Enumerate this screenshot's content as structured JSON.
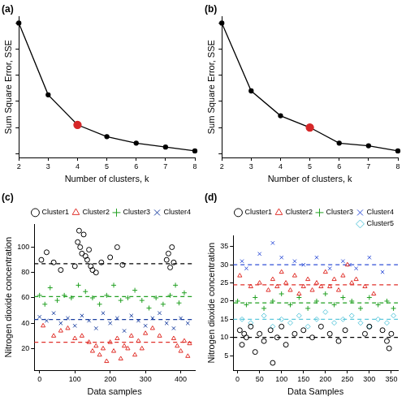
{
  "chart_data": [
    {
      "type": "line",
      "title": "(a)",
      "x_label": "Number of clusters, k",
      "y_label": "Sum Square Error, SSE",
      "x": [
        2,
        3,
        4,
        5,
        6,
        7,
        8
      ],
      "values": [
        100,
        45,
        22,
        13,
        8,
        5,
        2
      ],
      "color": "#000000",
      "colors": [
        "#000000",
        "#000000",
        "#d62728",
        "#000000",
        "#000000",
        "#000000",
        "#000000"
      ],
      "xlim": [
        2,
        8
      ],
      "xticks": [
        2,
        3,
        4,
        5,
        6,
        7,
        8
      ],
      "ylim": [
        -3,
        105
      ],
      "yticks": [
        0,
        20,
        40,
        60,
        80,
        100
      ],
      "tick_labels": "x",
      "grid": false,
      "marker": "circle"
    },
    {
      "type": "line",
      "title": "(b)",
      "x_label": "Number of clusters, k",
      "y_label": "Sum Square Error, SSE",
      "x": [
        2,
        3,
        4,
        5,
        6,
        7,
        8
      ],
      "values": [
        100,
        48,
        29,
        20,
        8,
        6,
        2
      ],
      "color": "#000000",
      "colors": [
        "#000000",
        "#000000",
        "#000000",
        "#d62728",
        "#000000",
        "#000000",
        "#000000"
      ],
      "xlim": [
        2,
        8
      ],
      "xticks": [
        2,
        3,
        4,
        5,
        6,
        7,
        8
      ],
      "ylim": [
        -3,
        105
      ],
      "yticks": [
        0,
        20,
        40,
        60,
        80,
        100
      ],
      "tick_labels": "x",
      "grid": false,
      "marker": "circle"
    },
    {
      "type": "scatter",
      "title": "(c)",
      "x_label": "Data samples",
      "y_label": "Nitrogen dioxide concentration",
      "xlim": [
        -15,
        440
      ],
      "xticks": [
        0,
        100,
        200,
        300,
        400
      ],
      "ylim": [
        3,
        118
      ],
      "yticks": [
        20,
        40,
        60,
        80,
        100
      ],
      "grid": false,
      "legend": "top-right",
      "series": [
        {
          "name": "Cluster1",
          "color": "#000000",
          "marker": "circle",
          "hline": 87,
          "x": [
            5,
            20,
            40,
            60,
            100,
            108,
            112,
            115,
            120,
            125,
            130,
            135,
            140,
            145,
            150,
            160,
            175,
            200,
            220,
            235,
            360,
            365,
            370,
            375,
            380
          ],
          "values": [
            90,
            96,
            88,
            82,
            85,
            104,
            113,
            100,
            95,
            110,
            93,
            90,
            98,
            85,
            82,
            80,
            88,
            92,
            100,
            86,
            90,
            95,
            84,
            100,
            88
          ]
        },
        {
          "name": "Cluster2",
          "color": "#e0302a",
          "marker": "triangle",
          "hline": 25,
          "x": [
            10,
            40,
            60,
            80,
            100,
            120,
            140,
            150,
            160,
            170,
            180,
            190,
            200,
            210,
            220,
            230,
            240,
            250,
            260,
            270,
            280,
            290,
            300,
            320,
            340,
            380,
            390,
            400,
            410,
            420,
            425
          ],
          "values": [
            38,
            30,
            34,
            36,
            28,
            30,
            25,
            18,
            22,
            15,
            20,
            10,
            25,
            18,
            28,
            12,
            22,
            20,
            30,
            15,
            26,
            20,
            32,
            36,
            30,
            28,
            22,
            18,
            26,
            14,
            24
          ]
        },
        {
          "name": "Cluster3",
          "color": "#22a022",
          "marker": "plus",
          "hline": 61,
          "x": [
            0,
            15,
            30,
            50,
            70,
            90,
            110,
            130,
            150,
            170,
            190,
            210,
            230,
            250,
            270,
            290,
            310,
            330,
            350,
            370,
            385,
            395,
            410
          ],
          "values": [
            62,
            55,
            68,
            58,
            62,
            60,
            70,
            65,
            60,
            55,
            62,
            70,
            58,
            60,
            66,
            58,
            52,
            60,
            55,
            62,
            70,
            56,
            64
          ]
        },
        {
          "name": "Cluster4",
          "color": "#1a3fa0",
          "marker": "x",
          "hline": 43,
          "x": [
            0,
            20,
            40,
            60,
            80,
            100,
            120,
            140,
            160,
            180,
            200,
            220,
            240,
            260,
            280,
            300,
            320,
            340,
            360,
            380,
            400,
            420
          ],
          "values": [
            45,
            42,
            48,
            40,
            44,
            38,
            46,
            42,
            36,
            48,
            40,
            44,
            34,
            46,
            42,
            38,
            44,
            48,
            40,
            36,
            44,
            40
          ]
        }
      ]
    },
    {
      "type": "scatter",
      "title": "(d)",
      "x_label": "Data Samples",
      "y_label": "Nitrogen dioxide concentration",
      "xlim": [
        -10,
        365
      ],
      "xticks": [
        0,
        50,
        100,
        150,
        200,
        250,
        300,
        350
      ],
      "ylim": [
        1,
        38
      ],
      "yticks": [
        5,
        10,
        15,
        20,
        25,
        30,
        35
      ],
      "grid": false,
      "legend": "top-right",
      "series": [
        {
          "name": "Cluster1",
          "color": "#000000",
          "marker": "circle",
          "hline": 10,
          "x": [
            5,
            10,
            15,
            20,
            30,
            40,
            50,
            60,
            75,
            80,
            90,
            100,
            110,
            130,
            150,
            170,
            190,
            210,
            230,
            245,
            290,
            300,
            330,
            340,
            345,
            350
          ],
          "values": [
            12,
            8,
            11,
            10,
            13,
            6,
            11,
            9,
            12,
            3,
            10,
            13,
            8,
            11,
            12,
            10,
            13,
            11,
            9,
            12,
            11,
            13,
            12,
            9,
            7,
            11
          ]
        },
        {
          "name": "Cluster2",
          "color": "#e0302a",
          "marker": "triangle",
          "hline": 24.5,
          "x": [
            5,
            30,
            50,
            70,
            80,
            90,
            100,
            110,
            120,
            130,
            140,
            150,
            160,
            170,
            180,
            190,
            200,
            210,
            220,
            230,
            240,
            250,
            260,
            270,
            290,
            310
          ],
          "values": [
            27,
            24,
            25,
            23,
            26,
            24,
            28,
            25,
            23,
            27,
            22,
            24,
            26,
            23,
            25,
            24,
            28,
            24,
            26,
            23,
            27,
            30,
            25,
            26,
            24,
            22
          ]
        },
        {
          "name": "Cluster3",
          "color": "#22a022",
          "marker": "plus",
          "hline": 19.5,
          "x": [
            0,
            20,
            40,
            60,
            80,
            100,
            120,
            140,
            160,
            180,
            200,
            220,
            240,
            260,
            280,
            300,
            320,
            340,
            355
          ],
          "values": [
            20,
            19,
            21,
            18,
            20,
            22,
            19,
            21,
            18,
            20,
            22,
            19,
            21,
            20,
            18,
            21,
            19,
            20,
            18
          ]
        },
        {
          "name": "Cluster4",
          "color": "#3050d8",
          "marker": "x",
          "hline": 30,
          "x": [
            10,
            20,
            50,
            80,
            100,
            130,
            150,
            180,
            210,
            240,
            255,
            270,
            300,
            330
          ],
          "values": [
            31,
            29,
            33,
            36,
            32,
            31,
            30,
            32,
            29,
            31,
            30,
            29,
            32,
            28
          ]
        },
        {
          "name": "Cluster5",
          "color": "#5ec8dc",
          "marker": "diamond",
          "hline": 15,
          "x": [
            10,
            30,
            60,
            80,
            100,
            120,
            140,
            160,
            180,
            200,
            220,
            240,
            260,
            280,
            300,
            320,
            340,
            355
          ],
          "values": [
            15,
            14,
            16,
            13,
            15,
            14,
            16,
            13,
            15,
            17,
            14,
            15,
            16,
            14,
            13,
            15,
            14,
            16
          ]
        }
      ]
    }
  ]
}
